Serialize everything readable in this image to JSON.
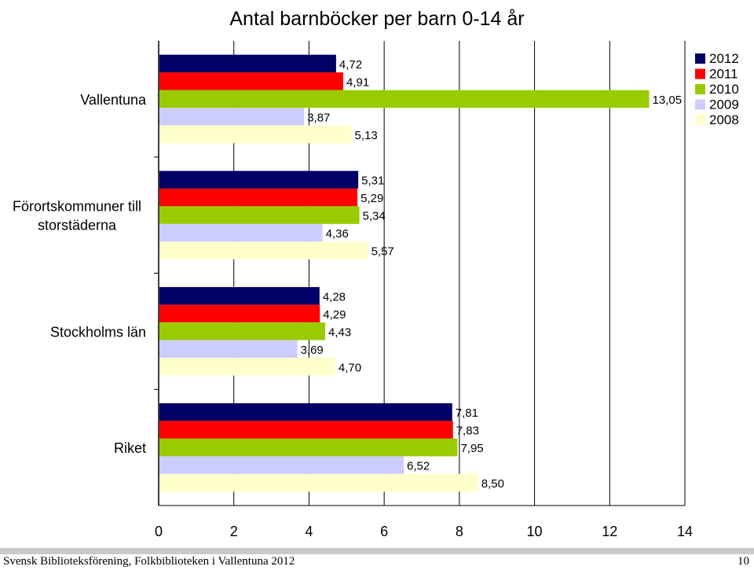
{
  "chart_data": {
    "type": "bar",
    "orientation": "horizontal",
    "title": "Antal barnböcker per barn 0-14 år",
    "categories": [
      "Vallentuna",
      "Förortskommuner till storstäderna",
      "Stockholms län",
      "Riket"
    ],
    "series": [
      {
        "name": "2012",
        "color": "#000066",
        "values": [
          4.72,
          5.31,
          4.28,
          7.81
        ],
        "labels": [
          "4,72",
          "5,31",
          "4,28",
          "7,81"
        ]
      },
      {
        "name": "2011",
        "color": "#ff0000",
        "values": [
          4.91,
          5.29,
          4.29,
          7.83
        ],
        "labels": [
          "4,91",
          "5,29",
          "4,29",
          "7,83"
        ]
      },
      {
        "name": "2010",
        "color": "#99cc00",
        "values": [
          13.05,
          5.34,
          4.43,
          7.95
        ],
        "labels": [
          "13,05",
          "5,34",
          "4,43",
          "7,95"
        ]
      },
      {
        "name": "2009",
        "color": "#ccccff",
        "values": [
          3.87,
          4.36,
          3.69,
          6.52
        ],
        "labels": [
          "3,87",
          "4,36",
          "3,69",
          "6,52"
        ]
      },
      {
        "name": "2008",
        "color": "#ffffcc",
        "values": [
          5.13,
          5.57,
          4.7,
          8.5
        ],
        "labels": [
          "5,13",
          "5,57",
          "4,70",
          "8,50"
        ]
      }
    ],
    "xlim": [
      0,
      14
    ],
    "xticks": [
      "0",
      "2",
      "4",
      "6",
      "8",
      "10",
      "12",
      "14"
    ],
    "grid": "vertical",
    "legend": "top-right"
  },
  "footer": {
    "left": "Svensk Biblioteksförening, Folkbiblioteken i Vallentuna 2012",
    "page": "10"
  }
}
